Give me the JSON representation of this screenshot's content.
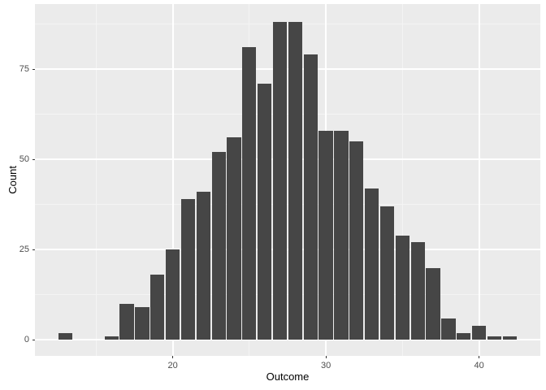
{
  "chart_data": {
    "type": "bar",
    "subtype": "histogram",
    "title": "",
    "xlabel": "Outcome",
    "ylabel": "Count",
    "bin_width": 1,
    "bin_centers": [
      13,
      14,
      15,
      16,
      17,
      18,
      19,
      20,
      21,
      22,
      23,
      24,
      25,
      26,
      27,
      28,
      29,
      30,
      31,
      32,
      33,
      34,
      35,
      36,
      37,
      38,
      39,
      40,
      41,
      42
    ],
    "counts": [
      2,
      0,
      0,
      1,
      10,
      9,
      18,
      25,
      39,
      41,
      52,
      56,
      81,
      71,
      88,
      88,
      79,
      58,
      58,
      55,
      42,
      37,
      29,
      27,
      20,
      6,
      2,
      4,
      1,
      1
    ],
    "total_count": 1000,
    "xlim": [
      11,
      44
    ],
    "ylim": [
      -4.4,
      93
    ],
    "x_major_ticks": [
      20,
      30,
      40
    ],
    "y_major_ticks": [
      0,
      25,
      50,
      75
    ],
    "x_minor_gridlines": [
      15,
      25,
      35
    ],
    "y_minor_gridlines": [
      12.5,
      37.5,
      62.5,
      87.5
    ],
    "grid": true,
    "legend": "none",
    "style": {
      "page_bg": "#FFFFFF",
      "panel_bg": "#EBEBEB",
      "major_grid_color": "#FFFFFF",
      "minor_grid_color": "#F4F4F4",
      "bar_fill": "#464646",
      "tick_label_color": "#4D4D4D",
      "axis_title_color": "#000000",
      "tick_mark_color": "#333333"
    }
  }
}
